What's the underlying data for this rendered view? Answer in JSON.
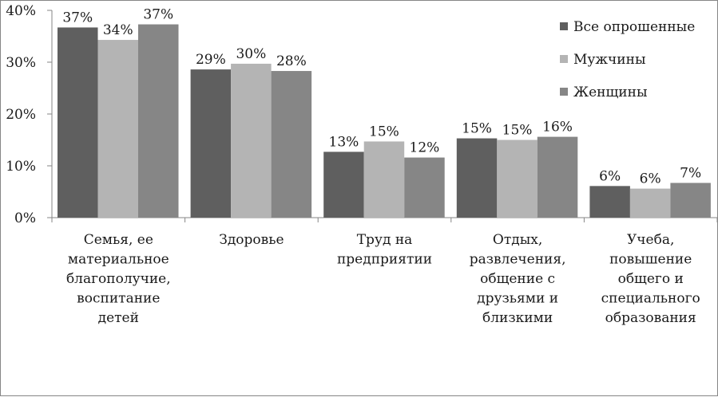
{
  "chart_data": {
    "type": "bar",
    "categories": [
      [
        "Семья, ее",
        "материальное",
        "благополучие,",
        "воспитание",
        "детей"
      ],
      [
        "Здоровье"
      ],
      [
        "Труд на",
        "предприятии"
      ],
      [
        "Отдых,",
        "развлечения,",
        "общение с",
        "друзьями и",
        "близкими"
      ],
      [
        "Учеба,",
        "повышение",
        "общего и",
        "специального",
        "образования"
      ]
    ],
    "series": [
      {
        "name": "Все опрошенные",
        "color": "#5f5f5f",
        "values": [
          36.7,
          28.6,
          12.7,
          15.3,
          6.1
        ],
        "labels": [
          "37%",
          "29%",
          "13%",
          "15%",
          "6%"
        ]
      },
      {
        "name": "Мужчины",
        "color": "#b4b4b4",
        "values": [
          34.3,
          29.7,
          14.7,
          15.0,
          5.6
        ],
        "labels": [
          "34%",
          "30%",
          "15%",
          "15%",
          "6%"
        ]
      },
      {
        "name": "Женщины",
        "color": "#868686",
        "values": [
          37.3,
          28.3,
          11.6,
          15.6,
          6.7
        ],
        "labels": [
          "37%",
          "28%",
          "12%",
          "16%",
          "7%"
        ]
      }
    ],
    "y_ticks": [
      "0%",
      "10%",
      "20%",
      "30%",
      "40%"
    ],
    "ylim": [
      0,
      40
    ],
    "grid": false,
    "legend_position": "top-right"
  }
}
